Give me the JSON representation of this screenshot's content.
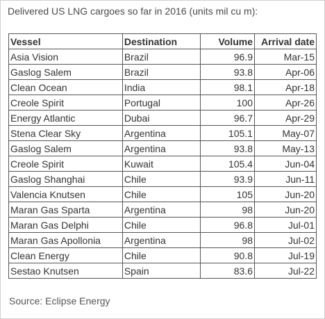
{
  "title": "Delivered US LNG cargoes so far in 2016 (units mil cu m):",
  "table": {
    "headers": {
      "vessel": "Vessel",
      "destination": "Destination",
      "volume": "Volume",
      "arrival_date": "Arrival date"
    },
    "rows": [
      {
        "vessel": "Asia Vision",
        "destination": "Brazil",
        "volume": "96.9",
        "arrival_date": "Mar-15"
      },
      {
        "vessel": "Gaslog Salem",
        "destination": "Brazil",
        "volume": "93.8",
        "arrival_date": "Apr-06"
      },
      {
        "vessel": "Clean Ocean",
        "destination": "India",
        "volume": "98.1",
        "arrival_date": "Apr-18"
      },
      {
        "vessel": "Creole Spirit",
        "destination": "Portugal",
        "volume": "100",
        "arrival_date": "Apr-26"
      },
      {
        "vessel": "Energy Atlantic",
        "destination": "Dubai",
        "volume": "96.7",
        "arrival_date": "Apr-29"
      },
      {
        "vessel": "Stena Clear Sky",
        "destination": "Argentina",
        "volume": "105.1",
        "arrival_date": "May-07"
      },
      {
        "vessel": "Gaslog Salem",
        "destination": "Argentina",
        "volume": "93.8",
        "arrival_date": "May-13"
      },
      {
        "vessel": "Creole Spirit",
        "destination": "Kuwait",
        "volume": "105.4",
        "arrival_date": "Jun-04"
      },
      {
        "vessel": "Gaslog Shanghai",
        "destination": "Chile",
        "volume": "93.9",
        "arrival_date": "Jun-11"
      },
      {
        "vessel": "Valencia Knutsen",
        "destination": "Chile",
        "volume": "105",
        "arrival_date": "Jun-20"
      },
      {
        "vessel": "Maran Gas Sparta",
        "destination": "Argentina",
        "volume": "98",
        "arrival_date": "Jun-20"
      },
      {
        "vessel": "Maran Gas Delphi",
        "destination": "Chile",
        "volume": "96.8",
        "arrival_date": "Jul-01"
      },
      {
        "vessel": "Maran Gas Apollonia",
        "destination": "Argentina",
        "volume": "98",
        "arrival_date": "Jul-02"
      },
      {
        "vessel": "Clean Energy",
        "destination": "Chile",
        "volume": "90.8",
        "arrival_date": "Jul-19"
      },
      {
        "vessel": "Sestao Knutsen",
        "destination": "Spain",
        "volume": "83.6",
        "arrival_date": "Jul-22"
      }
    ]
  },
  "source": "Source: Eclipse Energy"
}
